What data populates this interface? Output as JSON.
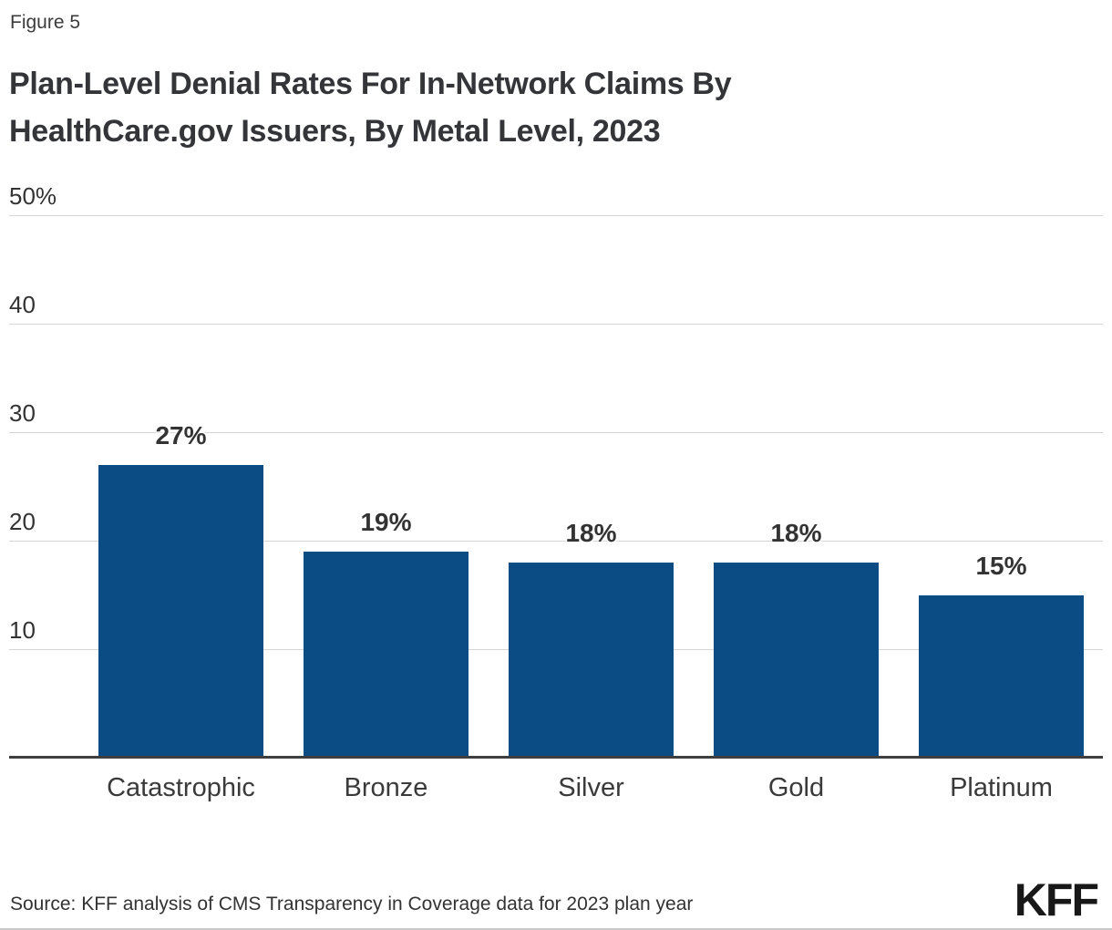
{
  "figure_label": "Figure 5",
  "title_lines": [
    "Plan-Level Denial Rates For In-Network Claims By",
    "HealthCare.gov Issuers, By Metal Level, 2023"
  ],
  "source": "Source: KFF analysis of CMS Transparency in Coverage data for 2023 plan year",
  "logo_text": "KFF",
  "colors": {
    "bar": "#0c4c85",
    "gridline": "#d5d5d5",
    "axis_line": "#3f3f3f",
    "text": "#333333"
  },
  "chart_data": {
    "type": "bar",
    "title": "Plan-Level Denial Rates For In-Network Claims By HealthCare.gov Issuers, By Metal Level, 2023",
    "categories": [
      "Catastrophic",
      "Bronze",
      "Silver",
      "Gold",
      "Platinum"
    ],
    "values": [
      27,
      19,
      18,
      18,
      15
    ],
    "value_labels": [
      "27%",
      "19%",
      "18%",
      "18%",
      "15%"
    ],
    "xlabel": "",
    "ylabel": "",
    "ylim": [
      0,
      50
    ],
    "yticks": [
      {
        "label": "50%",
        "value": 50
      },
      {
        "label": "40",
        "value": 40
      },
      {
        "label": "30",
        "value": 30
      },
      {
        "label": "20",
        "value": 20
      },
      {
        "label": "10",
        "value": 10
      }
    ],
    "grid": true,
    "legend": false
  }
}
